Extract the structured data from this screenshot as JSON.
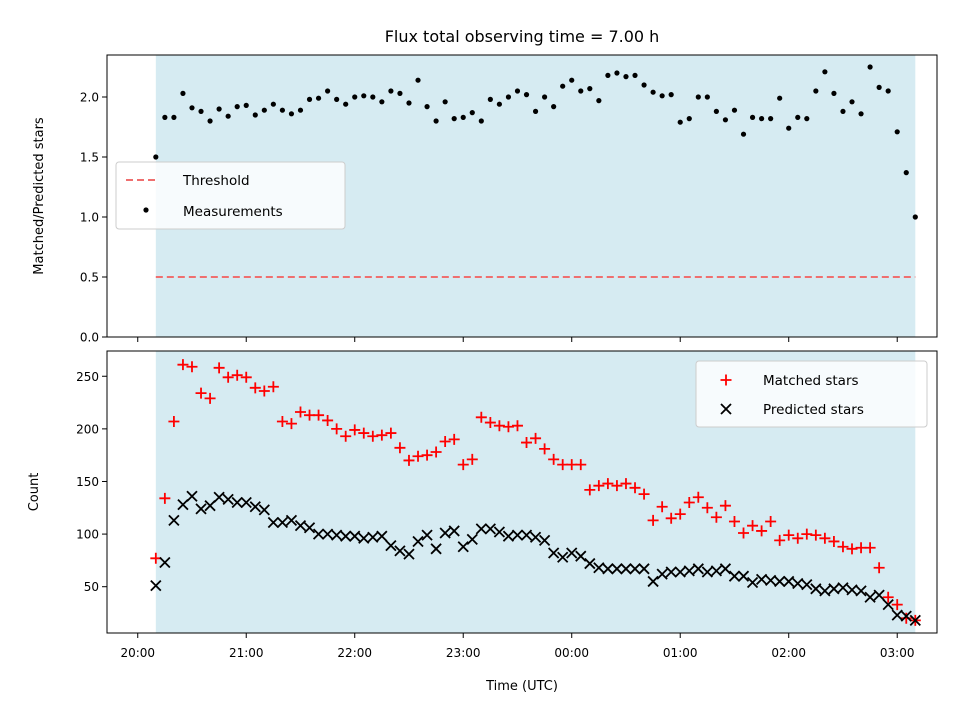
{
  "title": "Flux total observing time = 7.00 h",
  "colors": {
    "observing_window": "#add8e6",
    "threshold": "#ef6f6f",
    "measurements": "#000000",
    "matched": "#ff0000",
    "predicted": "#000000"
  },
  "chart_data": [
    {
      "type": "scatter",
      "panel": "top",
      "ylabel": "Matched/Predicted stars",
      "ylim": [
        0,
        2.35
      ],
      "yticks": [
        "0.0",
        "0.5",
        "1.0",
        "1.5",
        "2.0"
      ],
      "grid": false,
      "legend_position": "center-left",
      "shaded_span": [
        "20:10",
        "03:10"
      ],
      "threshold": {
        "name": "Threshold",
        "value": 0.5,
        "style": "dashed"
      },
      "series": [
        {
          "name": "Measurements",
          "marker": "dot",
          "x": [
            "20:10",
            "20:15",
            "20:20",
            "20:25",
            "20:30",
            "20:35",
            "20:40",
            "20:45",
            "20:50",
            "20:55",
            "21:00",
            "21:05",
            "21:10",
            "21:15",
            "21:20",
            "21:25",
            "21:30",
            "21:35",
            "21:40",
            "21:45",
            "21:50",
            "21:55",
            "22:00",
            "22:05",
            "22:10",
            "22:15",
            "22:20",
            "22:25",
            "22:30",
            "22:35",
            "22:40",
            "22:45",
            "22:50",
            "22:55",
            "23:00",
            "23:05",
            "23:10",
            "23:15",
            "23:20",
            "23:25",
            "23:30",
            "23:35",
            "23:40",
            "23:45",
            "23:50",
            "23:55",
            "00:00",
            "00:05",
            "00:10",
            "00:15",
            "00:20",
            "00:25",
            "00:30",
            "00:35",
            "00:40",
            "00:45",
            "00:50",
            "00:55",
            "01:00",
            "01:05",
            "01:10",
            "01:15",
            "01:20",
            "01:25",
            "01:30",
            "01:35",
            "01:40",
            "01:45",
            "01:50",
            "01:55",
            "02:00",
            "02:05",
            "02:10",
            "02:15",
            "02:20",
            "02:25",
            "02:30",
            "02:35",
            "02:40",
            "02:45",
            "02:50",
            "02:55",
            "03:00",
            "03:05",
            "03:10"
          ],
          "y": [
            1.5,
            1.83,
            1.83,
            2.03,
            1.91,
            1.88,
            1.8,
            1.9,
            1.84,
            1.92,
            1.93,
            1.85,
            1.89,
            1.94,
            1.89,
            1.86,
            1.89,
            1.98,
            1.99,
            2.05,
            1.98,
            1.94,
            2.0,
            2.01,
            2.0,
            1.96,
            2.05,
            2.03,
            1.95,
            2.14,
            1.92,
            1.8,
            1.96,
            1.82,
            1.83,
            1.87,
            1.8,
            1.98,
            1.94,
            2.0,
            2.05,
            2.02,
            1.88,
            2.0,
            1.92,
            2.09,
            2.14,
            2.05,
            2.07,
            1.97,
            2.18,
            2.2,
            2.17,
            2.18,
            2.1,
            2.04,
            2.01,
            2.02,
            1.79,
            1.82,
            2.0,
            2.0,
            1.88,
            1.81,
            1.89,
            1.69,
            1.83,
            1.82,
            1.82,
            1.99,
            1.74,
            1.83,
            1.82,
            2.05,
            2.21,
            2.03,
            1.88,
            1.96,
            1.86,
            2.25,
            2.08,
            2.05,
            1.71,
            1.37,
            1.0
          ]
        }
      ]
    },
    {
      "type": "scatter",
      "panel": "bottom",
      "xlabel": "Time (UTC)",
      "ylabel": "Count",
      "ylim": [
        6,
        274
      ],
      "yticks": [
        "50",
        "100",
        "150",
        "200",
        "250"
      ],
      "xticks": [
        "20:00",
        "21:00",
        "22:00",
        "23:00",
        "00:00",
        "01:00",
        "02:00",
        "03:00"
      ],
      "grid": false,
      "legend_position": "top-right",
      "shaded_span": [
        "20:10",
        "03:10"
      ],
      "series": [
        {
          "name": "Matched stars",
          "marker": "plus",
          "x": [
            "20:10",
            "20:15",
            "20:20",
            "20:25",
            "20:30",
            "20:35",
            "20:40",
            "20:45",
            "20:50",
            "20:55",
            "21:00",
            "21:05",
            "21:10",
            "21:15",
            "21:20",
            "21:25",
            "21:30",
            "21:35",
            "21:40",
            "21:45",
            "21:50",
            "21:55",
            "22:00",
            "22:05",
            "22:10",
            "22:15",
            "22:20",
            "22:25",
            "22:30",
            "22:35",
            "22:40",
            "22:45",
            "22:50",
            "22:55",
            "23:00",
            "23:05",
            "23:10",
            "23:15",
            "23:20",
            "23:25",
            "23:30",
            "23:35",
            "23:40",
            "23:45",
            "23:50",
            "23:55",
            "00:00",
            "00:05",
            "00:10",
            "00:15",
            "00:20",
            "00:25",
            "00:30",
            "00:35",
            "00:40",
            "00:45",
            "00:50",
            "00:55",
            "01:00",
            "01:05",
            "01:10",
            "01:15",
            "01:20",
            "01:25",
            "01:30",
            "01:35",
            "01:40",
            "01:45",
            "01:50",
            "01:55",
            "02:00",
            "02:05",
            "02:10",
            "02:15",
            "02:20",
            "02:25",
            "02:30",
            "02:35",
            "02:40",
            "02:45",
            "02:50",
            "02:55",
            "03:00",
            "03:05",
            "03:10"
          ],
          "y": [
            77,
            134,
            207,
            261,
            259,
            234,
            229,
            258,
            249,
            251,
            249,
            239,
            236,
            240,
            207,
            205,
            216,
            213,
            213,
            208,
            200,
            193,
            199,
            196,
            193,
            194,
            196,
            182,
            170,
            174,
            175,
            178,
            188,
            190,
            166,
            171,
            211,
            206,
            203,
            202,
            203,
            187,
            191,
            181,
            171,
            166,
            166,
            166,
            142,
            146,
            148,
            146,
            148,
            144,
            138,
            113,
            126,
            115,
            119,
            130,
            135,
            125,
            116,
            127,
            112,
            101,
            108,
            103,
            112,
            94,
            99,
            96,
            100,
            99,
            96,
            93,
            88,
            86,
            87,
            87,
            68,
            40,
            33,
            20,
            18
          ]
        },
        {
          "name": "Predicted stars",
          "marker": "x",
          "x": [
            "20:10",
            "20:15",
            "20:20",
            "20:25",
            "20:30",
            "20:35",
            "20:40",
            "20:45",
            "20:50",
            "20:55",
            "21:00",
            "21:05",
            "21:10",
            "21:15",
            "21:20",
            "21:25",
            "21:30",
            "21:35",
            "21:40",
            "21:45",
            "21:50",
            "21:55",
            "22:00",
            "22:05",
            "22:10",
            "22:15",
            "22:20",
            "22:25",
            "22:30",
            "22:35",
            "22:40",
            "22:45",
            "22:50",
            "22:55",
            "23:00",
            "23:05",
            "23:10",
            "23:15",
            "23:20",
            "23:25",
            "23:30",
            "23:35",
            "23:40",
            "23:45",
            "23:50",
            "23:55",
            "00:00",
            "00:05",
            "00:10",
            "00:15",
            "00:20",
            "00:25",
            "00:30",
            "00:35",
            "00:40",
            "00:45",
            "00:50",
            "00:55",
            "01:00",
            "01:05",
            "01:10",
            "01:15",
            "01:20",
            "01:25",
            "01:30",
            "01:35",
            "01:40",
            "01:45",
            "01:50",
            "01:55",
            "02:00",
            "02:05",
            "02:10",
            "02:15",
            "02:20",
            "02:25",
            "02:30",
            "02:35",
            "02:40",
            "02:45",
            "02:50",
            "02:55",
            "03:00",
            "03:05",
            "03:10"
          ],
          "y": [
            51,
            73,
            113,
            128,
            136,
            124,
            127,
            135,
            133,
            130,
            130,
            126,
            123,
            111,
            111,
            113,
            108,
            106,
            100,
            100,
            99,
            98,
            98,
            96,
            97,
            98,
            89,
            84,
            81,
            93,
            99,
            86,
            101,
            103,
            88,
            95,
            105,
            105,
            102,
            98,
            99,
            99,
            97,
            94,
            82,
            78,
            82,
            79,
            72,
            68,
            67,
            67,
            67,
            67,
            67,
            55,
            62,
            64,
            64,
            65,
            67,
            64,
            65,
            67,
            60,
            60,
            54,
            57,
            56,
            55,
            55,
            53,
            52,
            48,
            46,
            48,
            49,
            47,
            46,
            40,
            42,
            33,
            23,
            22,
            18
          ]
        }
      ]
    }
  ]
}
